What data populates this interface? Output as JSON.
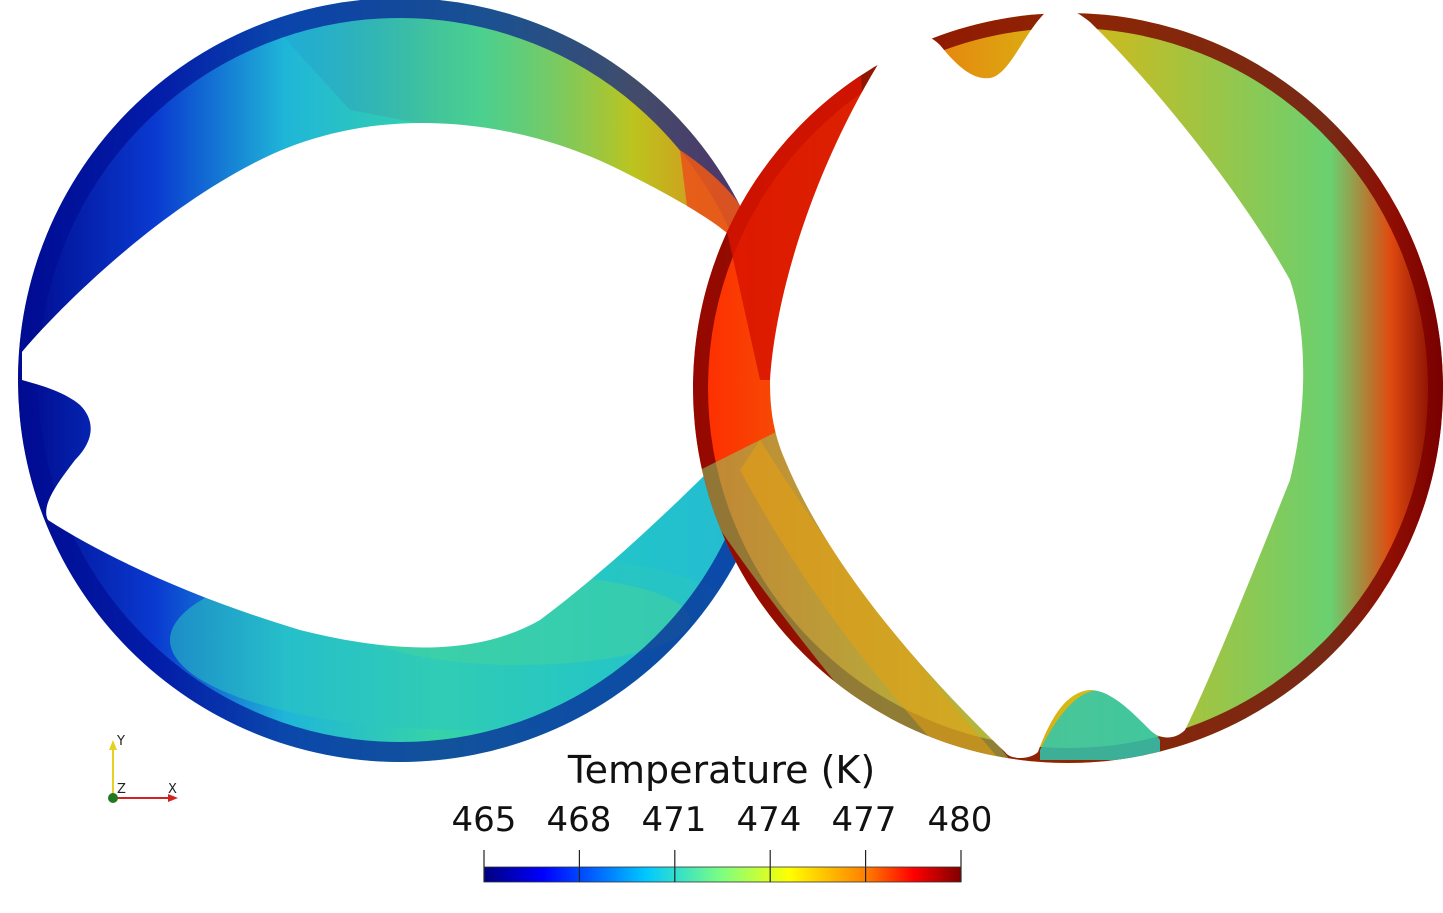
{
  "colorbar": {
    "title": "Temperature (K)",
    "ticks": [
      "465",
      "468",
      "471",
      "474",
      "477",
      "480"
    ],
    "range": [
      465,
      480
    ],
    "colormap": [
      "#00007f",
      "#0000ff",
      "#00c8ff",
      "#7fff7f",
      "#ffff00",
      "#ff7f00",
      "#ff0000",
      "#7f0000"
    ]
  },
  "orientation_axes": {
    "y_label": "Y",
    "z_label": "Z",
    "x_label": "X",
    "colors": {
      "x": "#d42020",
      "y": "#e8d020",
      "z": "#1f7a1f"
    }
  }
}
